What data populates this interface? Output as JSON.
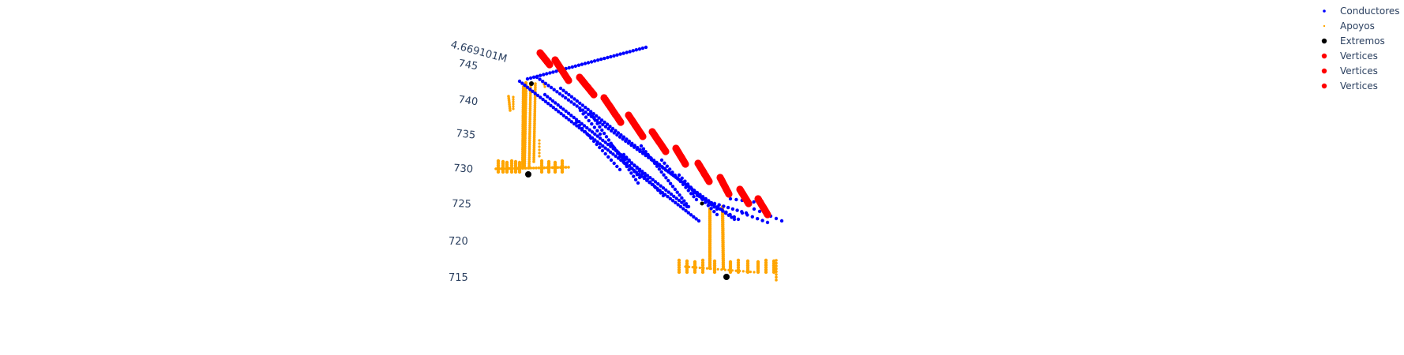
{
  "chart_data": {
    "type": "scatter3d",
    "title": "",
    "axis_labels": {
      "y_tick": "4.669101M",
      "z_ticks": [
        715,
        720,
        725,
        730,
        735,
        740,
        745
      ]
    },
    "legend": {
      "placement": "top-right",
      "items": [
        {
          "name": "Conductores",
          "color": "#0000ff",
          "size": "small"
        },
        {
          "name": "Apoyos",
          "color": "#ffa500",
          "size": "tiny"
        },
        {
          "name": "Extremos",
          "color": "#000000",
          "size": "medium"
        },
        {
          "name": "Vertices",
          "color": "#ff0000",
          "size": "medium"
        },
        {
          "name": "Vertices",
          "color": "#ff0000",
          "size": "medium"
        },
        {
          "name": "Vertices",
          "color": "#ff0000",
          "size": "medium"
        }
      ]
    },
    "colors": {
      "conductores": "#0000ff",
      "apoyos": "#ffa500",
      "extremos": "#000000",
      "vertices": "#ff0000"
    }
  }
}
